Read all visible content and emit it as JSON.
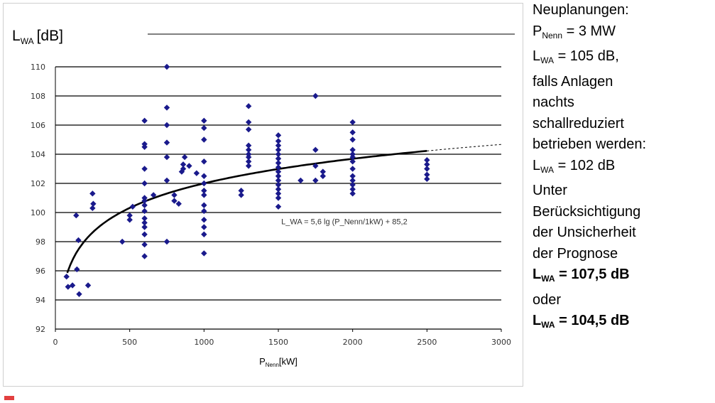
{
  "chart_data": {
    "type": "scatter",
    "ylabel_main": "L",
    "ylabel_sub": "WA",
    "ylabel_unit": "[dB]",
    "xlabel_main": "P",
    "xlabel_sub": "Nenn",
    "xlabel_unit": "[kW]",
    "xlim": [
      0,
      3000
    ],
    "ylim": [
      92,
      110
    ],
    "xticks": [
      "0",
      "500",
      "1000",
      "1500",
      "2000",
      "2500",
      "3000"
    ],
    "yticks": [
      "92",
      "94",
      "96",
      "98",
      "100",
      "102",
      "104",
      "106",
      "108",
      "110"
    ],
    "grid": "horizontal",
    "marker_color": "#1a1a8c",
    "fit_equation": "L_WA = 5,6 lg (P_Nenn/1kW) + 85,2",
    "fit": {
      "a": 5.6,
      "b": 85.2,
      "solid_range": [
        80,
        2500
      ],
      "dashed_range": [
        2500,
        3000
      ]
    },
    "points": [
      [
        75,
        95.6
      ],
      [
        85,
        94.9
      ],
      [
        115,
        95.0
      ],
      [
        145,
        96.1
      ],
      [
        160,
        94.4
      ],
      [
        140,
        99.8
      ],
      [
        155,
        98.1
      ],
      [
        220,
        95.0
      ],
      [
        250,
        100.3
      ],
      [
        255,
        100.6
      ],
      [
        250,
        101.3
      ],
      [
        450,
        98.0
      ],
      [
        500,
        99.5
      ],
      [
        500,
        99.8
      ],
      [
        520,
        100.4
      ],
      [
        600,
        97.0
      ],
      [
        600,
        97.8
      ],
      [
        600,
        98.5
      ],
      [
        600,
        99.0
      ],
      [
        600,
        99.3
      ],
      [
        600,
        99.6
      ],
      [
        600,
        100.1
      ],
      [
        600,
        100.5
      ],
      [
        600,
        100.8
      ],
      [
        600,
        101.0
      ],
      [
        600,
        102.0
      ],
      [
        600,
        103.0
      ],
      [
        600,
        104.5
      ],
      [
        600,
        104.7
      ],
      [
        600,
        106.3
      ],
      [
        660,
        101.2
      ],
      [
        750,
        98.0
      ],
      [
        750,
        102.2
      ],
      [
        750,
        103.8
      ],
      [
        750,
        104.8
      ],
      [
        750,
        106.0
      ],
      [
        750,
        107.2
      ],
      [
        750,
        110.0
      ],
      [
        800,
        100.8
      ],
      [
        800,
        101.2
      ],
      [
        830,
        100.6
      ],
      [
        850,
        102.8
      ],
      [
        860,
        103.0
      ],
      [
        860,
        103.3
      ],
      [
        870,
        103.8
      ],
      [
        900,
        103.2
      ],
      [
        950,
        102.7
      ],
      [
        1000,
        97.2
      ],
      [
        1000,
        98.5
      ],
      [
        1000,
        99.0
      ],
      [
        1000,
        99.5
      ],
      [
        1000,
        100.1
      ],
      [
        1000,
        100.5
      ],
      [
        1000,
        101.2
      ],
      [
        1000,
        101.5
      ],
      [
        1000,
        102.0
      ],
      [
        1000,
        102.5
      ],
      [
        1000,
        103.5
      ],
      [
        1000,
        105.0
      ],
      [
        1000,
        105.8
      ],
      [
        1000,
        106.3
      ],
      [
        1250,
        101.2
      ],
      [
        1250,
        101.5
      ],
      [
        1300,
        103.2
      ],
      [
        1300,
        103.5
      ],
      [
        1300,
        103.8
      ],
      [
        1300,
        104.0
      ],
      [
        1300,
        104.3
      ],
      [
        1300,
        104.6
      ],
      [
        1300,
        105.7
      ],
      [
        1300,
        106.2
      ],
      [
        1300,
        107.3
      ],
      [
        1500,
        100.4
      ],
      [
        1500,
        101.0
      ],
      [
        1500,
        101.3
      ],
      [
        1500,
        101.6
      ],
      [
        1500,
        101.9
      ],
      [
        1500,
        102.2
      ],
      [
        1500,
        102.5
      ],
      [
        1500,
        102.8
      ],
      [
        1500,
        103.1
      ],
      [
        1500,
        103.4
      ],
      [
        1500,
        103.7
      ],
      [
        1500,
        104.0
      ],
      [
        1500,
        104.3
      ],
      [
        1500,
        104.6
      ],
      [
        1500,
        104.9
      ],
      [
        1500,
        105.3
      ],
      [
        1650,
        102.2
      ],
      [
        1750,
        102.2
      ],
      [
        1750,
        103.2
      ],
      [
        1750,
        104.3
      ],
      [
        1750,
        108.0
      ],
      [
        1800,
        102.5
      ],
      [
        1800,
        102.8
      ],
      [
        2000,
        101.3
      ],
      [
        2000,
        101.6
      ],
      [
        2000,
        101.9
      ],
      [
        2000,
        102.2
      ],
      [
        2000,
        102.5
      ],
      [
        2000,
        103.0
      ],
      [
        2000,
        103.5
      ],
      [
        2000,
        103.8
      ],
      [
        2000,
        104.0
      ],
      [
        2000,
        104.3
      ],
      [
        2000,
        105.0
      ],
      [
        2000,
        105.5
      ],
      [
        2000,
        106.2
      ],
      [
        2500,
        102.3
      ],
      [
        2500,
        102.6
      ],
      [
        2500,
        103.0
      ],
      [
        2500,
        103.3
      ],
      [
        2500,
        103.6
      ]
    ]
  },
  "side": {
    "l1": "Neuplanungen:",
    "l2a": "P",
    "l2b": "Nenn",
    "l2c": " = 3 MW",
    "l3a": "L",
    "l3b": "WA",
    "l3c": " = 105 dB,",
    "l4": "falls Anlagen",
    "l5": "nachts",
    "l6": "schallreduziert",
    "l7": "betrieben werden:",
    "l8a": "L",
    "l8b": "WA",
    "l8c": " = 102 dB",
    "l9": "Unter",
    "l10": "Berücksichtigung",
    "l11": "der Unsicherheit",
    "l12": "der Prognose",
    "l13a": "L",
    "l13b": "WA",
    "l13c": " = 107,5 dB",
    "l14": "oder",
    "l15a": "L",
    "l15b": "WA",
    "l15c": " = 104,5 dB"
  }
}
